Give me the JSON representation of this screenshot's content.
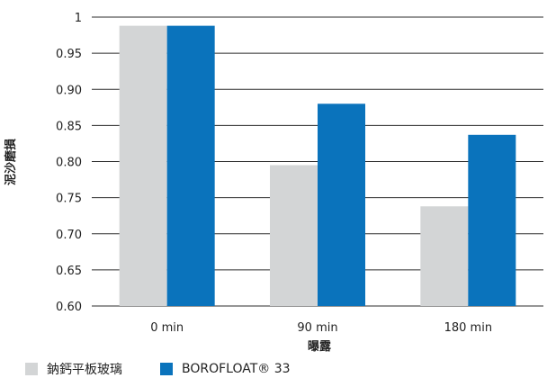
{
  "chart_data": {
    "type": "bar",
    "categories": [
      "0 min",
      "90 min",
      "180 min"
    ],
    "series": [
      {
        "name": "鈉鈣平板玻璃",
        "color": "#d3d5d6",
        "values": [
          0.988,
          0.795,
          0.738
        ]
      },
      {
        "name": "BOROFLOAT® 33",
        "color": "#0a73bc",
        "values": [
          0.988,
          0.88,
          0.837
        ]
      }
    ],
    "ylim": [
      0.6,
      1.0
    ],
    "yticks": [
      "0.60",
      "0.65",
      "0.70",
      "0.75",
      "0.80",
      "0.85",
      "0.90",
      "0.95",
      "1"
    ],
    "ytick_values": [
      0.6,
      0.65,
      0.7,
      0.75,
      0.8,
      0.85,
      0.9,
      0.95,
      1.0
    ],
    "xlabel": "曝露",
    "ylabel": "泥沙磨損",
    "grid": true,
    "legend_position": "bottom-left"
  }
}
